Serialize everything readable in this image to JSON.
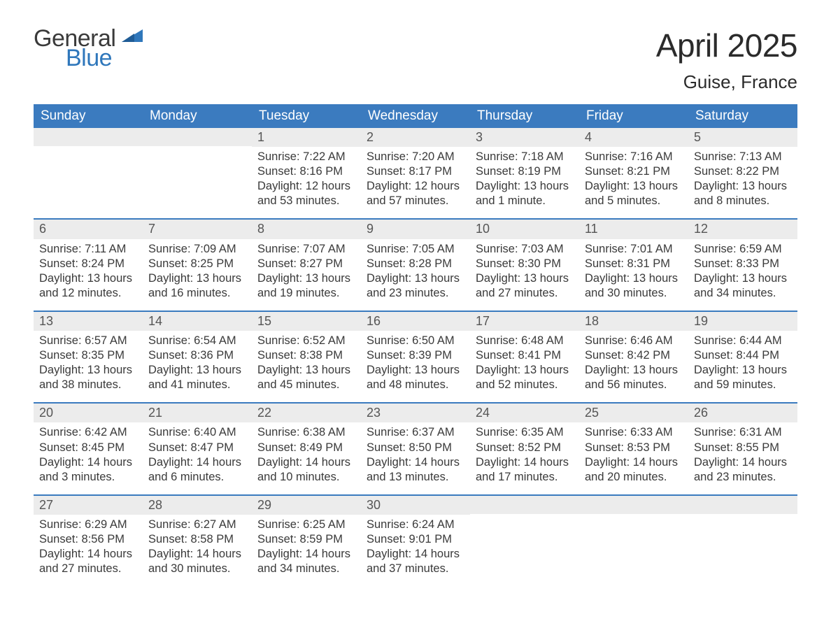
{
  "logo": {
    "word1": "General",
    "word2": "Blue"
  },
  "header": {
    "title": "April 2025",
    "location": "Guise, France"
  },
  "colors": {
    "brand_blue": "#3b7bbf",
    "logo_blue": "#2f77bb",
    "row_grey": "#ececec",
    "text": "#3a3a3a",
    "bg": "#ffffff"
  },
  "typography": {
    "title_fontsize": 46,
    "location_fontsize": 26,
    "dayheader_fontsize": 19,
    "cell_fontsize": 16.5,
    "logo_fontsize": 34
  },
  "columns": [
    "Sunday",
    "Monday",
    "Tuesday",
    "Wednesday",
    "Thursday",
    "Friday",
    "Saturday"
  ],
  "weeks": [
    [
      {
        "day": "",
        "sunrise": "",
        "sunset": "",
        "daylight": ""
      },
      {
        "day": "",
        "sunrise": "",
        "sunset": "",
        "daylight": ""
      },
      {
        "day": "1",
        "sunrise": "Sunrise: 7:22 AM",
        "sunset": "Sunset: 8:16 PM",
        "daylight": "Daylight: 12 hours and 53 minutes."
      },
      {
        "day": "2",
        "sunrise": "Sunrise: 7:20 AM",
        "sunset": "Sunset: 8:17 PM",
        "daylight": "Daylight: 12 hours and 57 minutes."
      },
      {
        "day": "3",
        "sunrise": "Sunrise: 7:18 AM",
        "sunset": "Sunset: 8:19 PM",
        "daylight": "Daylight: 13 hours and 1 minute."
      },
      {
        "day": "4",
        "sunrise": "Sunrise: 7:16 AM",
        "sunset": "Sunset: 8:21 PM",
        "daylight": "Daylight: 13 hours and 5 minutes."
      },
      {
        "day": "5",
        "sunrise": "Sunrise: 7:13 AM",
        "sunset": "Sunset: 8:22 PM",
        "daylight": "Daylight: 13 hours and 8 minutes."
      }
    ],
    [
      {
        "day": "6",
        "sunrise": "Sunrise: 7:11 AM",
        "sunset": "Sunset: 8:24 PM",
        "daylight": "Daylight: 13 hours and 12 minutes."
      },
      {
        "day": "7",
        "sunrise": "Sunrise: 7:09 AM",
        "sunset": "Sunset: 8:25 PM",
        "daylight": "Daylight: 13 hours and 16 minutes."
      },
      {
        "day": "8",
        "sunrise": "Sunrise: 7:07 AM",
        "sunset": "Sunset: 8:27 PM",
        "daylight": "Daylight: 13 hours and 19 minutes."
      },
      {
        "day": "9",
        "sunrise": "Sunrise: 7:05 AM",
        "sunset": "Sunset: 8:28 PM",
        "daylight": "Daylight: 13 hours and 23 minutes."
      },
      {
        "day": "10",
        "sunrise": "Sunrise: 7:03 AM",
        "sunset": "Sunset: 8:30 PM",
        "daylight": "Daylight: 13 hours and 27 minutes."
      },
      {
        "day": "11",
        "sunrise": "Sunrise: 7:01 AM",
        "sunset": "Sunset: 8:31 PM",
        "daylight": "Daylight: 13 hours and 30 minutes."
      },
      {
        "day": "12",
        "sunrise": "Sunrise: 6:59 AM",
        "sunset": "Sunset: 8:33 PM",
        "daylight": "Daylight: 13 hours and 34 minutes."
      }
    ],
    [
      {
        "day": "13",
        "sunrise": "Sunrise: 6:57 AM",
        "sunset": "Sunset: 8:35 PM",
        "daylight": "Daylight: 13 hours and 38 minutes."
      },
      {
        "day": "14",
        "sunrise": "Sunrise: 6:54 AM",
        "sunset": "Sunset: 8:36 PM",
        "daylight": "Daylight: 13 hours and 41 minutes."
      },
      {
        "day": "15",
        "sunrise": "Sunrise: 6:52 AM",
        "sunset": "Sunset: 8:38 PM",
        "daylight": "Daylight: 13 hours and 45 minutes."
      },
      {
        "day": "16",
        "sunrise": "Sunrise: 6:50 AM",
        "sunset": "Sunset: 8:39 PM",
        "daylight": "Daylight: 13 hours and 48 minutes."
      },
      {
        "day": "17",
        "sunrise": "Sunrise: 6:48 AM",
        "sunset": "Sunset: 8:41 PM",
        "daylight": "Daylight: 13 hours and 52 minutes."
      },
      {
        "day": "18",
        "sunrise": "Sunrise: 6:46 AM",
        "sunset": "Sunset: 8:42 PM",
        "daylight": "Daylight: 13 hours and 56 minutes."
      },
      {
        "day": "19",
        "sunrise": "Sunrise: 6:44 AM",
        "sunset": "Sunset: 8:44 PM",
        "daylight": "Daylight: 13 hours and 59 minutes."
      }
    ],
    [
      {
        "day": "20",
        "sunrise": "Sunrise: 6:42 AM",
        "sunset": "Sunset: 8:45 PM",
        "daylight": "Daylight: 14 hours and 3 minutes."
      },
      {
        "day": "21",
        "sunrise": "Sunrise: 6:40 AM",
        "sunset": "Sunset: 8:47 PM",
        "daylight": "Daylight: 14 hours and 6 minutes."
      },
      {
        "day": "22",
        "sunrise": "Sunrise: 6:38 AM",
        "sunset": "Sunset: 8:49 PM",
        "daylight": "Daylight: 14 hours and 10 minutes."
      },
      {
        "day": "23",
        "sunrise": "Sunrise: 6:37 AM",
        "sunset": "Sunset: 8:50 PM",
        "daylight": "Daylight: 14 hours and 13 minutes."
      },
      {
        "day": "24",
        "sunrise": "Sunrise: 6:35 AM",
        "sunset": "Sunset: 8:52 PM",
        "daylight": "Daylight: 14 hours and 17 minutes."
      },
      {
        "day": "25",
        "sunrise": "Sunrise: 6:33 AM",
        "sunset": "Sunset: 8:53 PM",
        "daylight": "Daylight: 14 hours and 20 minutes."
      },
      {
        "day": "26",
        "sunrise": "Sunrise: 6:31 AM",
        "sunset": "Sunset: 8:55 PM",
        "daylight": "Daylight: 14 hours and 23 minutes."
      }
    ],
    [
      {
        "day": "27",
        "sunrise": "Sunrise: 6:29 AM",
        "sunset": "Sunset: 8:56 PM",
        "daylight": "Daylight: 14 hours and 27 minutes."
      },
      {
        "day": "28",
        "sunrise": "Sunrise: 6:27 AM",
        "sunset": "Sunset: 8:58 PM",
        "daylight": "Daylight: 14 hours and 30 minutes."
      },
      {
        "day": "29",
        "sunrise": "Sunrise: 6:25 AM",
        "sunset": "Sunset: 8:59 PM",
        "daylight": "Daylight: 14 hours and 34 minutes."
      },
      {
        "day": "30",
        "sunrise": "Sunrise: 6:24 AM",
        "sunset": "Sunset: 9:01 PM",
        "daylight": "Daylight: 14 hours and 37 minutes."
      },
      {
        "day": "",
        "sunrise": "",
        "sunset": "",
        "daylight": ""
      },
      {
        "day": "",
        "sunrise": "",
        "sunset": "",
        "daylight": ""
      },
      {
        "day": "",
        "sunrise": "",
        "sunset": "",
        "daylight": ""
      }
    ]
  ]
}
